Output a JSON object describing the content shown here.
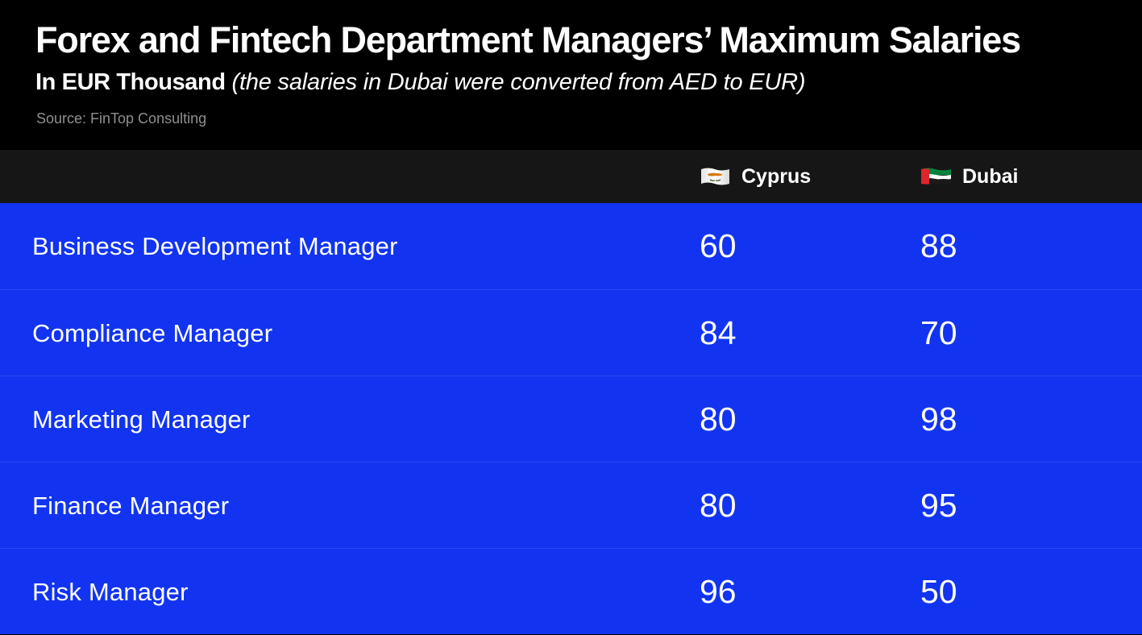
{
  "header": {
    "title": "Forex and Fintech Department Managers’ Maximum Salaries",
    "unit": "In EUR Thousand",
    "note": " (the salaries in Dubai were converted from AED to EUR)",
    "source": "Source: FinTop Consulting"
  },
  "colors": {
    "background": "#000000",
    "header_bar": "#161616",
    "row_fill": "#1234f0",
    "row_divider": "#2a49f2",
    "text": "#ffffff",
    "source_text": "#8f8f8f"
  },
  "columns": [
    {
      "label": "Cyprus",
      "icon": "cyprus-flag-icon"
    },
    {
      "label": "Dubai",
      "icon": "uae-flag-icon"
    }
  ],
  "chart_data": {
    "type": "table",
    "title": "Forex and Fintech Department Managers’ Maximum Salaries",
    "subtitle": "In EUR Thousand (the salaries in Dubai were converted from AED to EUR)",
    "source": "Source: FinTop Consulting",
    "columns": [
      "Cyprus",
      "Dubai"
    ],
    "rows": [
      {
        "label": "Business Development Manager",
        "values": [
          60,
          88
        ]
      },
      {
        "label": "Compliance Manager",
        "values": [
          84,
          70
        ]
      },
      {
        "label": "Marketing Manager",
        "values": [
          80,
          98
        ]
      },
      {
        "label": "Finance Manager",
        "values": [
          80,
          95
        ]
      },
      {
        "label": "Risk Manager",
        "values": [
          96,
          50
        ]
      }
    ]
  }
}
